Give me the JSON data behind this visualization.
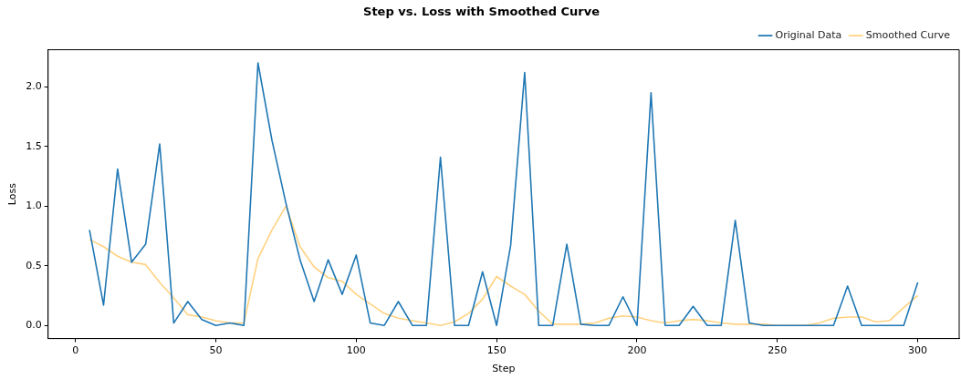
{
  "chart_data": {
    "type": "line",
    "title": "Step vs. Loss with Smoothed Curve",
    "xlabel": "Step",
    "ylabel": "Loss",
    "x": [
      5,
      10,
      15,
      20,
      25,
      30,
      35,
      40,
      45,
      50,
      55,
      60,
      65,
      70,
      75,
      80,
      85,
      90,
      95,
      100,
      105,
      110,
      115,
      120,
      125,
      130,
      135,
      140,
      145,
      150,
      155,
      160,
      165,
      170,
      175,
      180,
      185,
      190,
      195,
      200,
      205,
      210,
      215,
      220,
      225,
      230,
      235,
      240,
      245,
      250,
      255,
      260,
      265,
      270,
      275,
      280,
      285,
      290,
      295,
      300
    ],
    "series": [
      {
        "name": "Original Data",
        "color": "#1f77b4",
        "values": [
          0.8,
          0.17,
          1.31,
          0.53,
          0.68,
          1.52,
          0.02,
          0.2,
          0.05,
          0.0,
          0.02,
          0.0,
          2.2,
          1.55,
          1.02,
          0.55,
          0.2,
          0.55,
          0.26,
          0.59,
          0.02,
          0.0,
          0.2,
          0.0,
          0.0,
          1.41,
          0.0,
          0.0,
          0.45,
          0.0,
          0.67,
          2.12,
          0.0,
          0.0,
          0.68,
          0.01,
          0.0,
          0.0,
          0.24,
          0.0,
          1.95,
          0.0,
          0.0,
          0.16,
          0.0,
          0.0,
          0.88,
          0.02,
          0.0,
          0.0,
          0.0,
          0.0,
          0.0,
          0.0,
          0.33,
          0.0,
          0.0,
          0.0,
          0.0,
          0.36
        ]
      },
      {
        "name": "Smoothed Curve",
        "color": "#ffd280",
        "values": [
          0.72,
          0.66,
          0.58,
          0.53,
          0.51,
          0.36,
          0.23,
          0.09,
          0.07,
          0.04,
          0.02,
          0.02,
          0.56,
          0.8,
          1.0,
          0.66,
          0.49,
          0.4,
          0.37,
          0.26,
          0.18,
          0.1,
          0.06,
          0.04,
          0.02,
          0.0,
          0.03,
          0.1,
          0.22,
          0.41,
          0.33,
          0.26,
          0.12,
          0.01,
          0.01,
          0.01,
          0.02,
          0.06,
          0.08,
          0.07,
          0.04,
          0.02,
          0.04,
          0.05,
          0.04,
          0.02,
          0.01,
          0.01,
          0.01,
          0.0,
          0.0,
          0.0,
          0.02,
          0.06,
          0.07,
          0.07,
          0.03,
          0.04,
          0.15,
          0.25
        ]
      }
    ],
    "xlim": [
      -9.75,
      314.75
    ],
    "xticks": [
      0,
      50,
      100,
      150,
      200,
      250,
      300
    ],
    "ylim": [
      -0.11,
      2.31
    ],
    "yticks": [
      {
        "value": 0,
        "label": "0.0"
      },
      {
        "value": 0.5,
        "label": "0.5"
      },
      {
        "value": 1,
        "label": "1.0"
      },
      {
        "value": 1.5,
        "label": "1.5"
      },
      {
        "value": 2,
        "label": "2.0"
      }
    ],
    "grid": false,
    "legend": "top right",
    "marker": "none",
    "line_style": "solid"
  }
}
